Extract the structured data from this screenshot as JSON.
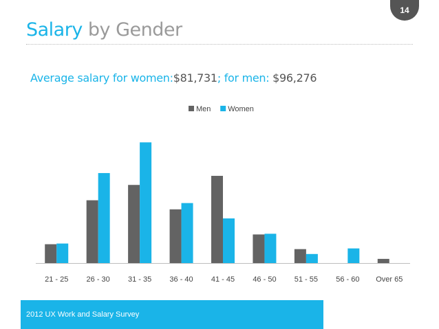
{
  "slide": {
    "page_number": "14",
    "title_part1": "Salary",
    "title_part2": "by Gender",
    "subtitle": {
      "women_label": "Average salary for women:",
      "women_value": "$81,731",
      "men_label": "; for men:",
      "men_value": "$96,276"
    },
    "footer": "2012 UX Work and Salary Survey"
  },
  "colors": {
    "men": "#636363",
    "women": "#1ab4e8",
    "accent": "#1ab4e8",
    "axis": "#bdbdbd"
  },
  "chart_data": {
    "type": "bar",
    "title": "",
    "xlabel": "",
    "ylabel": "",
    "legend_position": "top-right",
    "grid": false,
    "categories": [
      "21 - 25",
      "26 - 30",
      "31 - 35",
      "36 - 40",
      "41 - 45",
      "46 - 50",
      "51 - 55",
      "56 - 60",
      "Over 65"
    ],
    "series": [
      {
        "name": "Men",
        "values": [
          27,
          90,
          112,
          77,
          125,
          41,
          20,
          0,
          6
        ]
      },
      {
        "name": "Women",
        "values": [
          28,
          129,
          173,
          86,
          64,
          42,
          13,
          21,
          0
        ]
      }
    ],
    "ylim": [
      0,
      190
    ]
  }
}
